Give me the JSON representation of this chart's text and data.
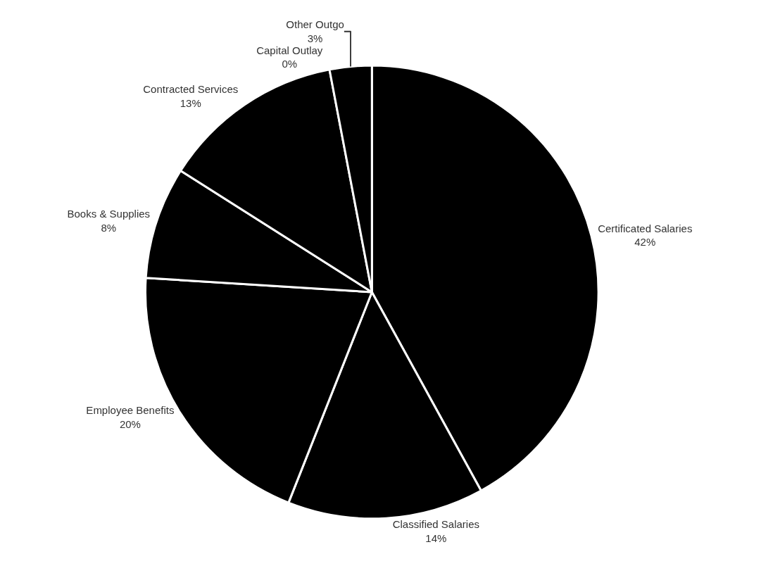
{
  "chart_data": {
    "type": "pie",
    "categories": [
      "Certificated Salaries",
      "Classified Salaries",
      "Employee Benefits",
      "Books & Supplies",
      "Contracted Services",
      "Capital Outlay",
      "Other Outgo"
    ],
    "values": [
      42,
      14,
      20,
      8,
      13,
      0,
      3
    ],
    "value_labels": [
      "42%",
      "14%",
      "20%",
      "8%",
      "13%",
      "0%",
      "3%"
    ],
    "colors": [
      "#000000",
      "#000000",
      "#000000",
      "#000000",
      "#000000",
      "#000000",
      "#000000"
    ],
    "legend": false
  }
}
